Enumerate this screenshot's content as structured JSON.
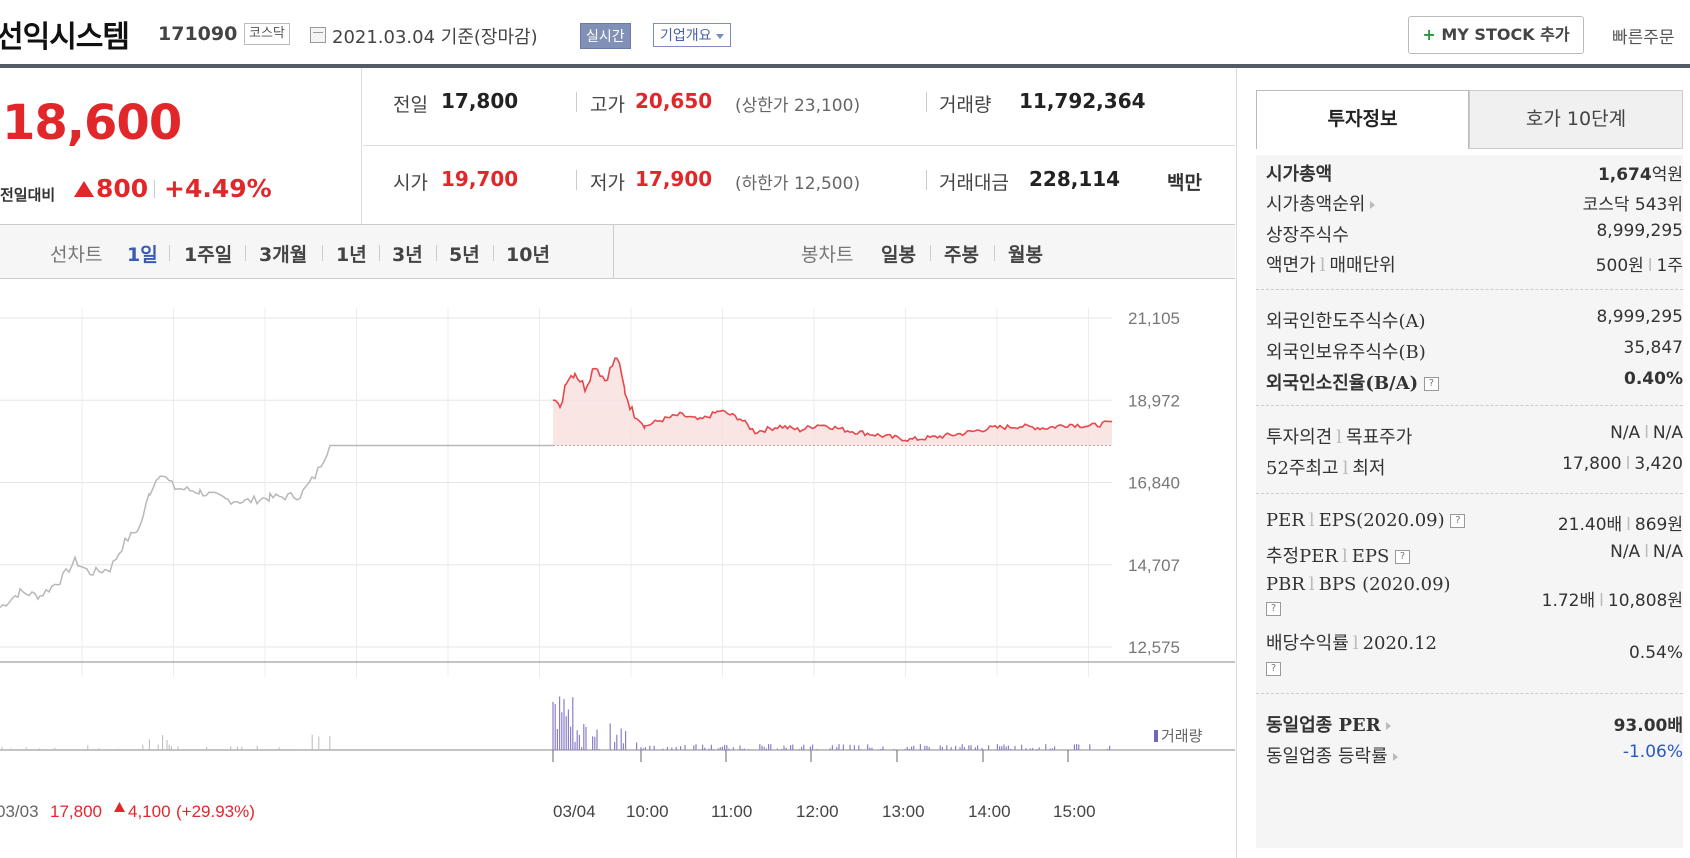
{
  "header": {
    "name": "선익시스템",
    "code": "171090",
    "market": "코스닥",
    "date_basis": "2021.03.04 기준(장마감)",
    "realtime_label": "실시간",
    "corp_label": "기업개요",
    "mystock_plus": "+",
    "mystock_label": "MY STOCK 추가",
    "quick_order": "빠른주문"
  },
  "price": {
    "current": "18,600",
    "vs_label": "전일대비",
    "vs_amount": "800",
    "vs_pct": "+4.49%"
  },
  "quote": {
    "prev_label": "전일",
    "prev": "17,800",
    "high_label": "고가",
    "high": "20,650",
    "upper_limit": "(상한가 23,100)",
    "volume_label": "거래량",
    "volume": "11,792,364",
    "open_label": "시가",
    "open": "19,700",
    "low_label": "저가",
    "low": "17,900",
    "lower_limit": "(하한가 12,500)",
    "amount_label": "거래대금",
    "amount": "228,114",
    "amount_unit": "백만"
  },
  "tabs": {
    "line_label": "선차트",
    "line": [
      "1일",
      "1주일",
      "3개월",
      "1년",
      "3년",
      "5년",
      "10년"
    ],
    "candle_label": "봉차트",
    "candle": [
      "일봉",
      "주봉",
      "월봉"
    ]
  },
  "chart_data": {
    "type": "line",
    "y_ticks": [
      "21,105",
      "18,972",
      "16,840",
      "14,707",
      "12,575"
    ],
    "ylim": [
      12575,
      21105
    ],
    "x_ticks": [
      "03/04",
      "10:00",
      "11:00",
      "12:00",
      "13:00",
      "14:00",
      "15:00"
    ],
    "prev_day_label": "03/03",
    "prev_day_price": "17,800",
    "prev_day_change": "4,100",
    "prev_day_pct": "(+29.93%)",
    "volume_legend": "거래량",
    "prev_close": 17800,
    "colors": {
      "today": "#e5484d",
      "prev": "#b8b8b8",
      "volume": "#8a7fc8"
    }
  },
  "info": {
    "tab_invest": "투자정보",
    "tab_hoga": "호가 10단계",
    "mcap_label": "시가총액",
    "mcap_num": "1,674",
    "mcap_unit": "억원",
    "mcap_rank_label": "시가총액순위",
    "mcap_rank": "코스닥 543위",
    "shares_label": "상장주식수",
    "shares": "8,999,295",
    "par_label": "액면가",
    "unit_label": "매매단위",
    "par": "500원",
    "unit": "1주",
    "foreign_limit_label": "외국인한도주식수(A)",
    "foreign_limit": "8,999,295",
    "foreign_hold_label": "외국인보유주식수(B)",
    "foreign_hold": "35,847",
    "foreign_ratio_label": "외국인소진율(B/A)",
    "foreign_ratio": "0.40%",
    "opinion_label": "투자의견",
    "target_label": "목표주가",
    "opinion": "N/A",
    "target": "N/A",
    "w52_label": "52주최고",
    "low_label": "최저",
    "w52_high": "17,800",
    "w52_low": "3,420",
    "per_label": "PER",
    "eps_label": "EPS",
    "per_period": "(2020.09)",
    "per": "21.40배",
    "eps": "869원",
    "est_per_label": "추정PER",
    "est_eps_label": "EPS",
    "est_per": "N/A",
    "est_eps": "N/A",
    "pbr_label": "PBR",
    "bps_label": "BPS",
    "pbr_period": "(2020.09)",
    "pbr": "1.72배",
    "bps": "10,808원",
    "div_label": "배당수익률",
    "div_period": "2020.12",
    "div": "0.54%",
    "ind_per_label": "동일업종 PER",
    "ind_per_num": "93.00",
    "ind_per_unit": "배",
    "ind_chg_label": "동일업종 등락률",
    "ind_chg": "-1.06%",
    "sep": "l",
    "q": "?"
  }
}
